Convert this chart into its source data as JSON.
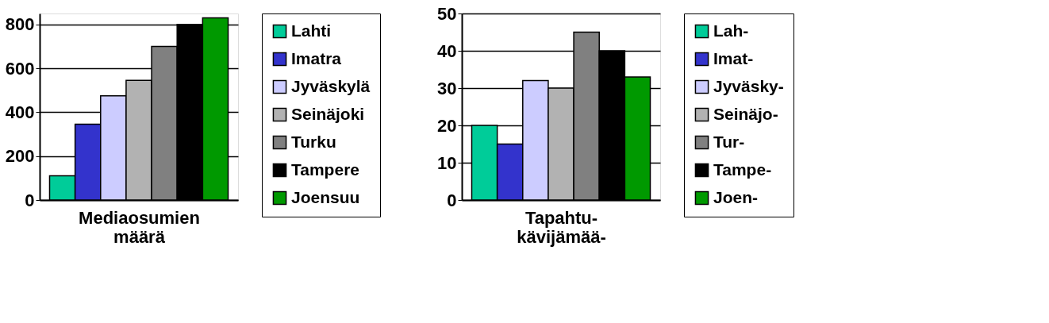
{
  "chart_data": [
    {
      "type": "bar",
      "xlabel": "Mediaosumien\nmäärä",
      "categories": [
        null
      ],
      "ylim": [
        0,
        850
      ],
      "yticks": [
        0,
        200,
        400,
        600,
        800
      ],
      "grid": "y",
      "legend": "right",
      "tick_labels": "y",
      "series": [
        {
          "name": "Lahti",
          "color": "#00cc99",
          "values": [
            110
          ]
        },
        {
          "name": "Imatra",
          "color": "#3333cc",
          "values": [
            345
          ]
        },
        {
          "name": "Jyväskylä",
          "color": "#ccccff",
          "values": [
            475
          ]
        },
        {
          "name": "Seinäjoki",
          "color": "#b2b2b2",
          "values": [
            545
          ]
        },
        {
          "name": "Turku",
          "color": "#808080",
          "values": [
            700
          ]
        },
        {
          "name": "Tampere",
          "color": "#000000",
          "values": [
            800
          ]
        },
        {
          "name": "Joensuu",
          "color": "#009900",
          "values": [
            830
          ]
        }
      ]
    },
    {
      "type": "bar",
      "xlabel": "Tapahtu-\nkävijämää-",
      "categories": [
        null
      ],
      "ylim": [
        0,
        50
      ],
      "yticks": [
        0,
        10,
        20,
        30,
        40,
        50
      ],
      "grid": "y",
      "legend": "right",
      "tick_labels": "y",
      "series": [
        {
          "name": "Lah-",
          "color": "#00cc99",
          "values": [
            20
          ]
        },
        {
          "name": "Imat-",
          "color": "#3333cc",
          "values": [
            15
          ]
        },
        {
          "name": "Jyväsky-",
          "color": "#ccccff",
          "values": [
            32
          ]
        },
        {
          "name": "Seinäjo-",
          "color": "#b2b2b2",
          "values": [
            30
          ]
        },
        {
          "name": "Tur-",
          "color": "#808080",
          "values": [
            45
          ]
        },
        {
          "name": "Tampe-",
          "color": "#000000",
          "values": [
            40
          ]
        },
        {
          "name": "Joen-",
          "color": "#009900",
          "values": [
            33
          ]
        }
      ]
    }
  ]
}
